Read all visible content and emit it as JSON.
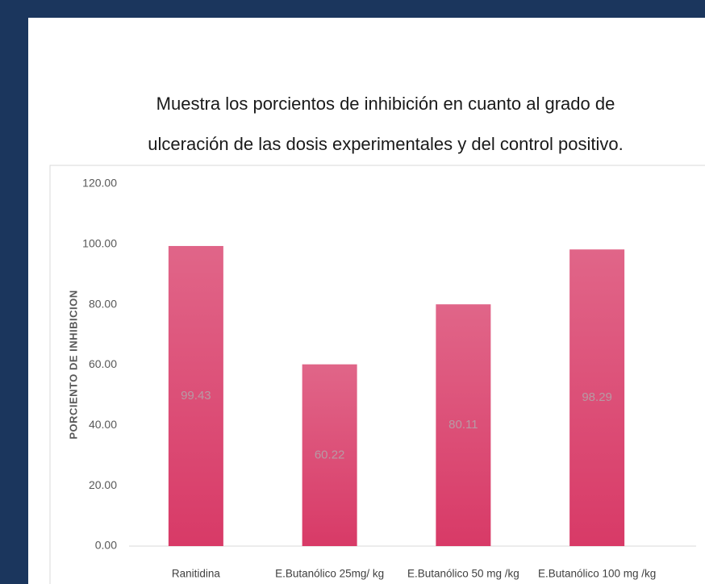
{
  "chart_data": {
    "type": "bar",
    "title": [
      "Muestra los porcientos de inhibición en cuanto al grado de",
      "ulceración de las dosis experimentales y del control positivo."
    ],
    "y_label": "PORCIENTO DE INHIBICION",
    "categories": [
      "Ranitidina",
      "E.Butanólico 25mg/ kg",
      "E.Butanólico 50 mg /kg",
      "E.Butanólico 100 mg /kg"
    ],
    "values": [
      99.43,
      60.22,
      80.11,
      98.29
    ],
    "color": "#d83a67",
    "ylim": [
      0,
      120
    ],
    "yticks": [
      {
        "value": 0,
        "label": "0.00"
      },
      {
        "value": 20,
        "label": "20.00"
      },
      {
        "value": 40,
        "label": "40.00"
      },
      {
        "value": 60,
        "label": "60.00"
      },
      {
        "value": 80,
        "label": "80.00"
      },
      {
        "value": 100,
        "label": "100.00"
      },
      {
        "value": 120,
        "label": "120.00"
      }
    ],
    "grid": false
  }
}
